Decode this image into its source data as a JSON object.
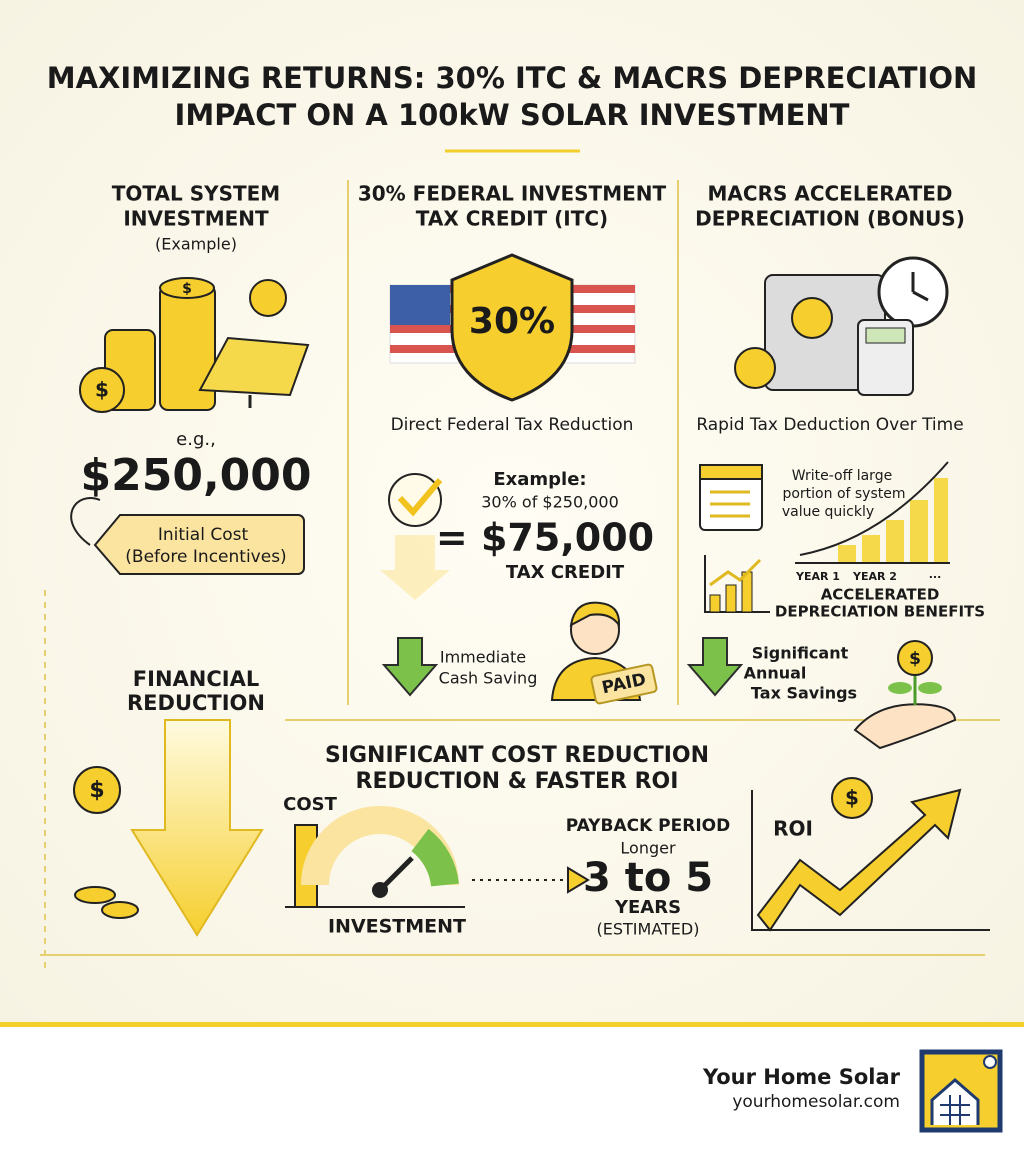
{
  "header": {
    "title_line1": "MAXIMIZING RETURNS: 30% ITC & MACRS DEPRECIATION",
    "title_line2": "IMPACT ON A 100kW SOLAR INVESTMENT"
  },
  "coin_symbol": "$",
  "columns": [
    {
      "title_lines": [
        "TOTAL SYSTEM",
        "INVESTMENT"
      ],
      "subtitle": "(Example)",
      "prefix": "e.g.,",
      "amount": "$250,000",
      "tag_lines": [
        "Initial Cost",
        "(Before Incentives)"
      ]
    },
    {
      "title_lines": [
        "30% FEDERAL INVESTMENT",
        "TAX CREDIT (ITC)"
      ],
      "badge": "30%",
      "caption": "Direct Federal Tax Reduction",
      "example_label": "Example:",
      "example_detail": "30% of $250,000",
      "result": "= $75,000",
      "result_label": "TAX CREDIT",
      "note_lines": [
        "Immediate",
        "Cash Saving"
      ],
      "stamp": "PAID"
    },
    {
      "title_lines": [
        "MACRS ACCELERATED",
        "DEPRECIATION (BONUS)"
      ],
      "caption": "Rapid Tax Deduction Over Time",
      "note_lines": [
        "Write-off large",
        "portion of system",
        "value quickly"
      ],
      "chart_labels": [
        "YEAR 1",
        "YEAR 2",
        "..."
      ],
      "chart_caption_lines": [
        "ACCELERATED",
        "DEPRECIATION BENEFITS"
      ],
      "savings_lines": [
        "Significant",
        "Annual",
        "Tax Savings"
      ]
    }
  ],
  "side_label_lines": [
    "FINANCIAL",
    "REDUCTION"
  ],
  "summary": {
    "title_lines": [
      "SIGNIFICANT COST REDUCTION",
      "REDUCTION & FASTER ROI"
    ],
    "cost_label": "COST",
    "investment_label": "INVESTMENT",
    "payback_label": "PAYBACK PERIOD",
    "payback_note": "Longer",
    "payback_value": "3 to 5",
    "payback_unit": "YEARS",
    "payback_qualifier": "(ESTIMATED)",
    "roi_label": "ROI"
  },
  "footer": {
    "brand": "Your Home Solar",
    "url": "yourhomesolar.com"
  }
}
